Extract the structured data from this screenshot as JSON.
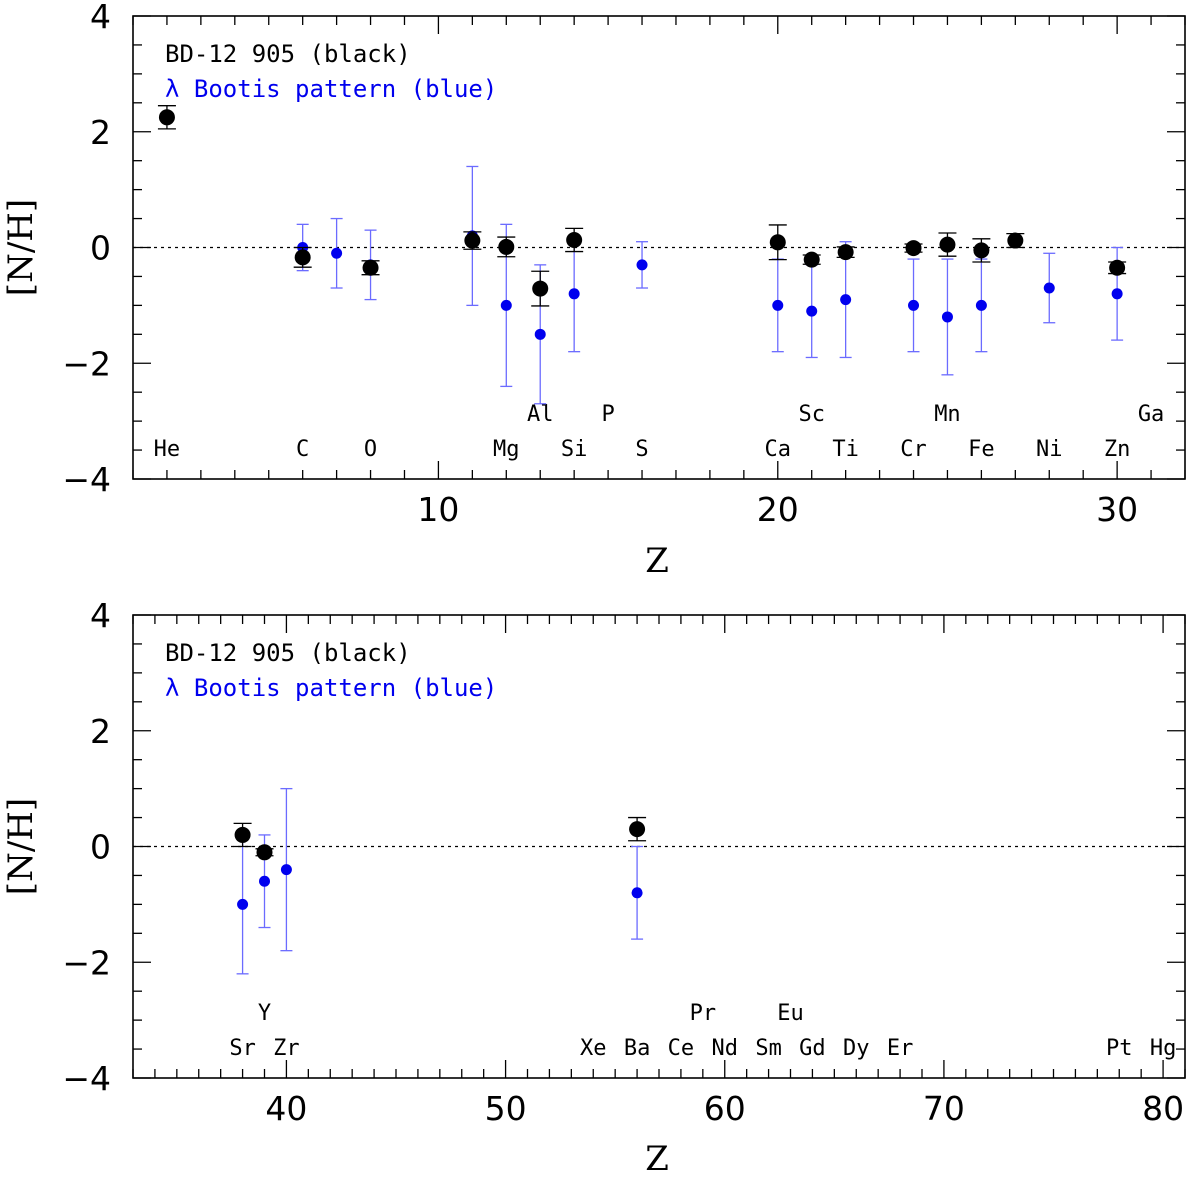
{
  "chart_data": [
    {
      "type": "scatter",
      "xlabel": "Z",
      "ylabel": "[N/H]",
      "xlim": [
        1,
        32
      ],
      "ylim": [
        -4,
        4
      ],
      "xticks_labeled": [
        10,
        20,
        30
      ],
      "yticks_labeled": [
        -4,
        -2,
        0,
        2,
        4
      ],
      "x_minor_step": 1,
      "y_minor_step": 0.5,
      "reference_line_y": 0,
      "legend": [
        {
          "text": "BD-12 905 (black)",
          "color": "#000000"
        },
        {
          "text": "λ Bootis pattern (blue)",
          "color": "#0000ee"
        }
      ],
      "series": [
        {
          "color": "#000000",
          "marker_size": "large",
          "points": [
            {
              "x": 2,
              "y": 2.25,
              "err": 0.2
            },
            {
              "x": 6,
              "y": -0.17,
              "err": 0.17
            },
            {
              "x": 8,
              "y": -0.35,
              "err": 0.12
            },
            {
              "x": 11,
              "y": 0.12,
              "err": 0.15
            },
            {
              "x": 12,
              "y": 0.01,
              "err": 0.17
            },
            {
              "x": 13,
              "y": -0.71,
              "err": 0.3
            },
            {
              "x": 14,
              "y": 0.13,
              "err": 0.2
            },
            {
              "x": 20,
              "y": 0.09,
              "err": 0.3
            },
            {
              "x": 21,
              "y": -0.21,
              "err": 0.08
            },
            {
              "x": 22,
              "y": -0.08,
              "err": 0.09
            },
            {
              "x": 24,
              "y": -0.01,
              "err": 0.07
            },
            {
              "x": 25,
              "y": 0.05,
              "err": 0.2
            },
            {
              "x": 26,
              "y": -0.05,
              "err": 0.2
            },
            {
              "x": 27,
              "y": 0.12,
              "err": 0.12
            },
            {
              "x": 30,
              "y": -0.35,
              "err": 0.1
            }
          ]
        },
        {
          "color": "#0000ee",
          "marker_size": "small",
          "points": [
            {
              "x": 6,
              "y": 0.0,
              "err": 0.4
            },
            {
              "x": 7,
              "y": -0.1,
              "err": 0.6
            },
            {
              "x": 8,
              "y": -0.3,
              "err": 0.6
            },
            {
              "x": 11,
              "y": 0.2,
              "err": 1.2
            },
            {
              "x": 12,
              "y": -1.0,
              "err": 1.4
            },
            {
              "x": 13,
              "y": -1.5,
              "err": 1.2
            },
            {
              "x": 14,
              "y": -0.8,
              "err": 1.0
            },
            {
              "x": 16,
              "y": -0.3,
              "err": 0.4
            },
            {
              "x": 20,
              "y": -1.0,
              "err": 0.8
            },
            {
              "x": 21,
              "y": -1.1,
              "err": 0.8
            },
            {
              "x": 22,
              "y": -0.9,
              "err": 1.0
            },
            {
              "x": 24,
              "y": -1.0,
              "err": 0.8
            },
            {
              "x": 25,
              "y": -1.2,
              "err": 1.0
            },
            {
              "x": 26,
              "y": -1.0,
              "err": 0.8
            },
            {
              "x": 28,
              "y": -0.7,
              "err": 0.6
            },
            {
              "x": 30,
              "y": -0.8,
              "err": 0.8
            }
          ]
        }
      ],
      "element_labels": [
        {
          "text": "He",
          "x": 2,
          "row": "lower"
        },
        {
          "text": "C",
          "x": 6,
          "row": "lower"
        },
        {
          "text": "O",
          "x": 8,
          "row": "lower"
        },
        {
          "text": "Mg",
          "x": 12,
          "row": "lower"
        },
        {
          "text": "Al",
          "x": 13,
          "row": "upper"
        },
        {
          "text": "Si",
          "x": 14,
          "row": "lower"
        },
        {
          "text": "P",
          "x": 15,
          "row": "upper"
        },
        {
          "text": "S",
          "x": 16,
          "row": "lower"
        },
        {
          "text": "Ca",
          "x": 20,
          "row": "lower"
        },
        {
          "text": "Sc",
          "x": 21,
          "row": "upper"
        },
        {
          "text": "Ti",
          "x": 22,
          "row": "lower"
        },
        {
          "text": "Cr",
          "x": 24,
          "row": "lower"
        },
        {
          "text": "Mn",
          "x": 25,
          "row": "upper"
        },
        {
          "text": "Fe",
          "x": 26,
          "row": "lower"
        },
        {
          "text": "Ni",
          "x": 28,
          "row": "lower"
        },
        {
          "text": "Zn",
          "x": 30,
          "row": "lower"
        },
        {
          "text": "Ga",
          "x": 31,
          "row": "upper"
        }
      ]
    },
    {
      "type": "scatter",
      "xlabel": "Z",
      "ylabel": "[N/H]",
      "xlim": [
        33,
        81
      ],
      "ylim": [
        -4,
        4
      ],
      "xticks_labeled": [
        40,
        50,
        60,
        70,
        80
      ],
      "yticks_labeled": [
        -4,
        -2,
        0,
        2,
        4
      ],
      "x_minor_step": 1,
      "y_minor_step": 0.5,
      "reference_line_y": 0,
      "legend": [
        {
          "text": "BD-12 905 (black)",
          "color": "#000000"
        },
        {
          "text": "λ Bootis pattern (blue)",
          "color": "#0000ee"
        }
      ],
      "series": [
        {
          "color": "#000000",
          "marker_size": "large",
          "points": [
            {
              "x": 38,
              "y": 0.2,
              "err": 0.2
            },
            {
              "x": 39,
              "y": -0.1,
              "err": 0.06
            },
            {
              "x": 56,
              "y": 0.3,
              "err": 0.2
            }
          ]
        },
        {
          "color": "#0000ee",
          "marker_size": "small",
          "points": [
            {
              "x": 38,
              "y": -1.0,
              "err": 1.2
            },
            {
              "x": 39,
              "y": -0.6,
              "err": 0.8
            },
            {
              "x": 40,
              "y": -0.4,
              "err": 1.4
            },
            {
              "x": 56,
              "y": -0.8,
              "err": 0.8
            }
          ]
        }
      ],
      "element_labels": [
        {
          "text": "Sr",
          "x": 38,
          "row": "lower"
        },
        {
          "text": "Y",
          "x": 39,
          "row": "upper"
        },
        {
          "text": "Zr",
          "x": 40,
          "row": "lower"
        },
        {
          "text": "Xe",
          "x": 54,
          "row": "lower"
        },
        {
          "text": "Ba",
          "x": 56,
          "row": "lower"
        },
        {
          "text": "Ce",
          "x": 58,
          "row": "lower"
        },
        {
          "text": "Pr",
          "x": 59,
          "row": "upper"
        },
        {
          "text": "Nd",
          "x": 60,
          "row": "lower"
        },
        {
          "text": "Sm",
          "x": 62,
          "row": "lower"
        },
        {
          "text": "Eu",
          "x": 63,
          "row": "upper"
        },
        {
          "text": "Gd",
          "x": 64,
          "row": "lower"
        },
        {
          "text": "Dy",
          "x": 66,
          "row": "lower"
        },
        {
          "text": "Er",
          "x": 68,
          "row": "lower"
        },
        {
          "text": "Pt",
          "x": 78,
          "row": "lower"
        },
        {
          "text": "Hg",
          "x": 80,
          "row": "lower"
        }
      ]
    }
  ]
}
